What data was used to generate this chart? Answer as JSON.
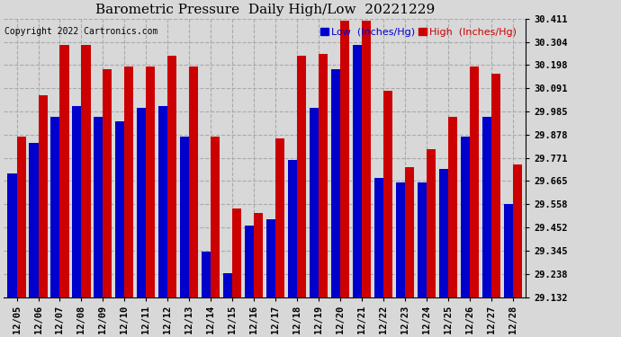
{
  "title": "Barometric Pressure  Daily High/Low  20221229",
  "copyright": "Copyright 2022 Cartronics.com",
  "legend_low": "Low  (Inches/Hg)",
  "legend_high": "High  (Inches/Hg)",
  "dates": [
    "12/05",
    "12/06",
    "12/07",
    "12/08",
    "12/09",
    "12/10",
    "12/11",
    "12/12",
    "12/13",
    "12/14",
    "12/15",
    "12/16",
    "12/17",
    "12/18",
    "12/19",
    "12/20",
    "12/21",
    "12/22",
    "12/23",
    "12/24",
    "12/25",
    "12/26",
    "12/27",
    "12/28"
  ],
  "low": [
    29.7,
    29.84,
    29.96,
    30.01,
    29.96,
    29.94,
    30.0,
    30.01,
    29.87,
    29.34,
    29.24,
    29.46,
    29.49,
    29.76,
    30.0,
    30.18,
    30.29,
    29.68,
    29.66,
    29.66,
    29.72,
    29.87,
    29.96,
    29.56
  ],
  "high": [
    29.87,
    30.06,
    30.29,
    30.29,
    30.18,
    30.19,
    30.19,
    30.24,
    30.19,
    29.87,
    29.54,
    29.52,
    29.86,
    30.24,
    30.25,
    30.4,
    30.4,
    30.08,
    29.73,
    29.81,
    29.96,
    30.19,
    30.16,
    29.74
  ],
  "ylim_min": 29.132,
  "ylim_max": 30.411,
  "yticks": [
    29.132,
    29.238,
    29.345,
    29.452,
    29.558,
    29.665,
    29.771,
    29.878,
    29.985,
    30.091,
    30.198,
    30.304,
    30.411
  ],
  "bar_color_low": "#0000cc",
  "bar_color_high": "#cc0000",
  "bg_color": "#d8d8d8",
  "grid_color": "#aaaaaa",
  "title_fontsize": 11,
  "copyright_fontsize": 7,
  "legend_fontsize": 8,
  "tick_fontsize": 7.5
}
